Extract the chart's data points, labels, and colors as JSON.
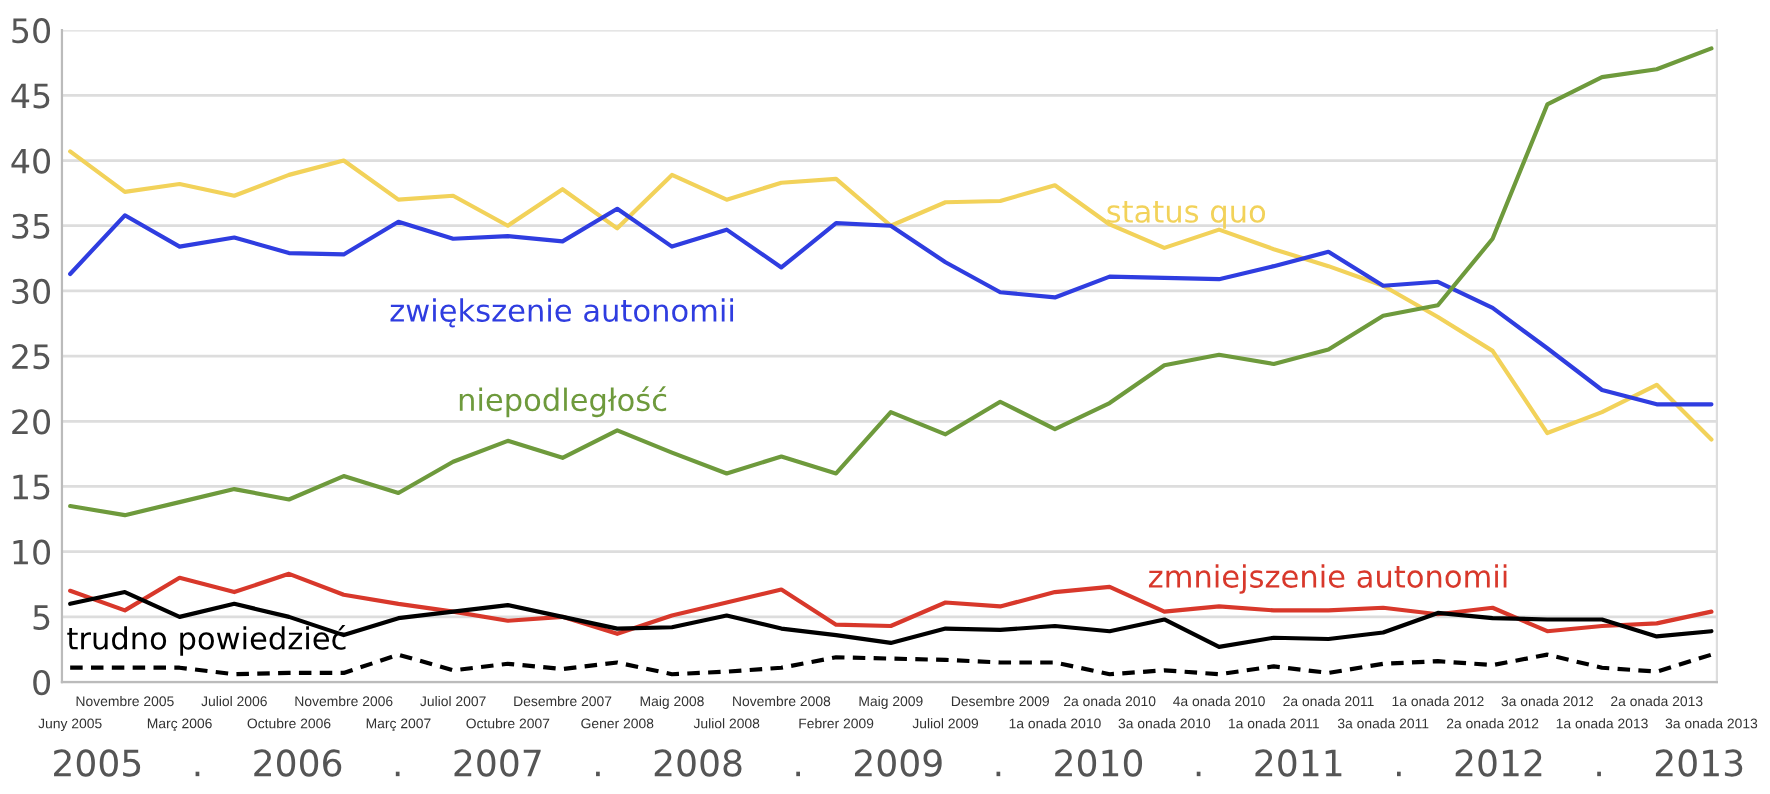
{
  "chart_data": {
    "type": "line",
    "categories": [
      "Juny 2005",
      "Novembre 2005",
      "Març 2006",
      "Juliol 2006",
      "Octubre 2006",
      "Novembre 2006",
      "Març 2007",
      "Juliol 2007",
      "Octubre 2007",
      "Desembre 2007",
      "Gener 2008",
      "Maig 2008",
      "Juliol 2008",
      "Novembre 2008",
      "Febrer 2009",
      "Maig 2009",
      "Juliol 2009",
      "Desembre 2009",
      "1a onada 2010",
      "2a onada 2010",
      "3a onada 2010",
      "4a onada 2010",
      "1a onada 2011",
      "2a onada 2011",
      "3a onada 2011",
      "1a onada 2012",
      "2a onada 2012",
      "3a onada 2012",
      "1a onada 2013",
      "2a onada 2013",
      "3a onada 2013"
    ],
    "series": [
      {
        "name": "status quo",
        "color": "#f2d25a",
        "values": [
          40.7,
          37.6,
          38.2,
          37.3,
          38.9,
          40.0,
          37.0,
          37.3,
          35.0,
          37.8,
          34.8,
          38.9,
          37.0,
          38.3,
          38.6,
          35.0,
          36.8,
          36.9,
          38.1,
          35.1,
          33.3,
          34.7,
          33.2,
          31.9,
          30.4,
          28.0,
          25.4,
          19.1,
          20.7,
          22.8,
          18.6
        ]
      },
      {
        "name": "zwiększenie autonomii",
        "color": "#2f3de0",
        "values": [
          31.3,
          35.8,
          33.4,
          34.1,
          32.9,
          32.8,
          35.3,
          34.0,
          34.2,
          33.8,
          36.3,
          33.4,
          34.7,
          31.8,
          35.2,
          35.0,
          32.2,
          29.9,
          29.5,
          31.1,
          31.0,
          30.9,
          31.9,
          33.0,
          30.4,
          30.7,
          28.7,
          25.6,
          22.4,
          21.3,
          21.3
        ]
      },
      {
        "name": "niepodległość",
        "color": "#6e9a3c",
        "values": [
          13.5,
          12.8,
          13.8,
          14.8,
          14.0,
          15.8,
          14.5,
          16.9,
          18.5,
          17.2,
          19.3,
          17.6,
          16.0,
          17.3,
          16.0,
          20.7,
          19.0,
          21.5,
          19.4,
          21.4,
          24.3,
          25.1,
          24.4,
          25.5,
          28.1,
          28.9,
          34.0,
          44.3,
          46.4,
          47.0,
          48.6
        ]
      },
      {
        "name": "zmniejszenie autonomii",
        "color": "#d8382b",
        "values": [
          7.0,
          5.5,
          8.0,
          6.9,
          8.3,
          6.7,
          6.0,
          5.4,
          4.7,
          5.0,
          3.7,
          5.1,
          6.1,
          7.1,
          4.4,
          4.3,
          6.1,
          5.8,
          6.9,
          7.3,
          5.4,
          5.8,
          5.5,
          5.5,
          5.7,
          5.2,
          5.7,
          3.9,
          4.3,
          4.5,
          5.4
        ]
      },
      {
        "name": "trudno powiedzieć",
        "color": "#000000",
        "values": [
          6.0,
          6.9,
          5.0,
          6.0,
          5.0,
          3.6,
          4.9,
          5.4,
          5.9,
          5.0,
          4.1,
          4.2,
          5.1,
          4.1,
          3.6,
          3.0,
          4.1,
          4.0,
          4.3,
          3.9,
          4.8,
          2.7,
          3.4,
          3.3,
          3.8,
          5.3,
          4.9,
          4.8,
          4.8,
          3.5,
          3.9
        ]
      },
      {
        "color": "#000000",
        "line_style": "dashed",
        "values": [
          1.1,
          1.1,
          1.1,
          0.6,
          0.7,
          0.7,
          2.1,
          0.9,
          1.4,
          1.0,
          1.5,
          0.6,
          0.8,
          1.1,
          1.9,
          1.8,
          1.7,
          1.5,
          1.5,
          0.6,
          0.9,
          0.6,
          1.2,
          0.7,
          1.4,
          1.6,
          1.3,
          2.1,
          1.1,
          0.8,
          2.1
        ]
      }
    ],
    "ylim": [
      0,
      50
    ],
    "yticks": [
      0,
      5,
      10,
      15,
      20,
      25,
      30,
      35,
      40,
      45,
      50
    ],
    "grid": "y",
    "legend": false,
    "line_style": "solid",
    "marker": "none",
    "annotations": [
      "2005",
      ".",
      "2006",
      ".",
      "2007",
      ".",
      "2008",
      ".",
      "2009",
      ".",
      "2010",
      ".",
      "2011",
      ".",
      "2012",
      ".",
      "2013"
    ]
  }
}
